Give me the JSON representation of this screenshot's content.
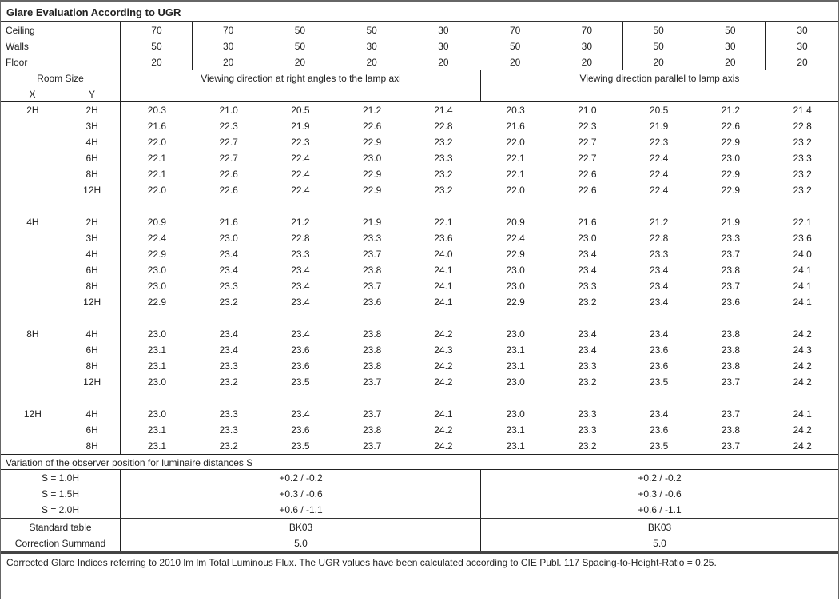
{
  "title": "Glare Evaluation According to UGR",
  "reflectances": [
    {
      "label": "Ceiling",
      "values": [
        "70",
        "70",
        "50",
        "50",
        "30",
        "70",
        "70",
        "50",
        "50",
        "30"
      ]
    },
    {
      "label": "Walls",
      "values": [
        "50",
        "30",
        "50",
        "30",
        "30",
        "50",
        "30",
        "50",
        "30",
        "30"
      ]
    },
    {
      "label": "Floor",
      "values": [
        "20",
        "20",
        "20",
        "20",
        "20",
        "20",
        "20",
        "20",
        "20",
        "20"
      ]
    }
  ],
  "header": {
    "room_size": "Room Size",
    "x": "X",
    "y": "Y",
    "dir_right": "Viewing direction at right angles to the lamp axi",
    "dir_parallel": "Viewing direction parallel to lamp axis"
  },
  "groups": [
    {
      "x": "2H",
      "rows": [
        {
          "y": "2H",
          "values": [
            "20.3",
            "21.0",
            "20.5",
            "21.2",
            "21.4",
            "20.3",
            "21.0",
            "20.5",
            "21.2",
            "21.4"
          ]
        },
        {
          "y": "3H",
          "values": [
            "21.6",
            "22.3",
            "21.9",
            "22.6",
            "22.8",
            "21.6",
            "22.3",
            "21.9",
            "22.6",
            "22.8"
          ]
        },
        {
          "y": "4H",
          "values": [
            "22.0",
            "22.7",
            "22.3",
            "22.9",
            "23.2",
            "22.0",
            "22.7",
            "22.3",
            "22.9",
            "23.2"
          ]
        },
        {
          "y": "6H",
          "values": [
            "22.1",
            "22.7",
            "22.4",
            "23.0",
            "23.3",
            "22.1",
            "22.7",
            "22.4",
            "23.0",
            "23.3"
          ]
        },
        {
          "y": "8H",
          "values": [
            "22.1",
            "22.6",
            "22.4",
            "22.9",
            "23.2",
            "22.1",
            "22.6",
            "22.4",
            "22.9",
            "23.2"
          ]
        },
        {
          "y": "12H",
          "values": [
            "22.0",
            "22.6",
            "22.4",
            "22.9",
            "23.2",
            "22.0",
            "22.6",
            "22.4",
            "22.9",
            "23.2"
          ]
        }
      ]
    },
    {
      "x": "4H",
      "rows": [
        {
          "y": "2H",
          "values": [
            "20.9",
            "21.6",
            "21.2",
            "21.9",
            "22.1",
            "20.9",
            "21.6",
            "21.2",
            "21.9",
            "22.1"
          ]
        },
        {
          "y": "3H",
          "values": [
            "22.4",
            "23.0",
            "22.8",
            "23.3",
            "23.6",
            "22.4",
            "23.0",
            "22.8",
            "23.3",
            "23.6"
          ]
        },
        {
          "y": "4H",
          "values": [
            "22.9",
            "23.4",
            "23.3",
            "23.7",
            "24.0",
            "22.9",
            "23.4",
            "23.3",
            "23.7",
            "24.0"
          ]
        },
        {
          "y": "6H",
          "values": [
            "23.0",
            "23.4",
            "23.4",
            "23.8",
            "24.1",
            "23.0",
            "23.4",
            "23.4",
            "23.8",
            "24.1"
          ]
        },
        {
          "y": "8H",
          "values": [
            "23.0",
            "23.3",
            "23.4",
            "23.7",
            "24.1",
            "23.0",
            "23.3",
            "23.4",
            "23.7",
            "24.1"
          ]
        },
        {
          "y": "12H",
          "values": [
            "22.9",
            "23.2",
            "23.4",
            "23.6",
            "24.1",
            "22.9",
            "23.2",
            "23.4",
            "23.6",
            "24.1"
          ]
        }
      ]
    },
    {
      "x": "8H",
      "rows": [
        {
          "y": "4H",
          "values": [
            "23.0",
            "23.4",
            "23.4",
            "23.8",
            "24.2",
            "23.0",
            "23.4",
            "23.4",
            "23.8",
            "24.2"
          ]
        },
        {
          "y": "6H",
          "values": [
            "23.1",
            "23.4",
            "23.6",
            "23.8",
            "24.3",
            "23.1",
            "23.4",
            "23.6",
            "23.8",
            "24.3"
          ]
        },
        {
          "y": "8H",
          "values": [
            "23.1",
            "23.3",
            "23.6",
            "23.8",
            "24.2",
            "23.1",
            "23.3",
            "23.6",
            "23.8",
            "24.2"
          ]
        },
        {
          "y": "12H",
          "values": [
            "23.0",
            "23.2",
            "23.5",
            "23.7",
            "24.2",
            "23.0",
            "23.2",
            "23.5",
            "23.7",
            "24.2"
          ]
        }
      ]
    },
    {
      "x": "12H",
      "rows": [
        {
          "y": "4H",
          "values": [
            "23.0",
            "23.3",
            "23.4",
            "23.7",
            "24.1",
            "23.0",
            "23.3",
            "23.4",
            "23.7",
            "24.1"
          ]
        },
        {
          "y": "6H",
          "values": [
            "23.1",
            "23.3",
            "23.6",
            "23.8",
            "24.2",
            "23.1",
            "23.3",
            "23.6",
            "23.8",
            "24.2"
          ]
        },
        {
          "y": "8H",
          "values": [
            "23.1",
            "23.2",
            "23.5",
            "23.7",
            "24.2",
            "23.1",
            "23.2",
            "23.5",
            "23.7",
            "24.2"
          ]
        }
      ]
    }
  ],
  "variation": {
    "label": "Variation of the observer position for luminaire distances S",
    "rows": [
      {
        "s": "S = 1.0H",
        "right": "+0.2 / -0.2",
        "parallel": "+0.2 / -0.2"
      },
      {
        "s": "S = 1.5H",
        "right": "+0.3 / -0.6",
        "parallel": "+0.3 / -0.6"
      },
      {
        "s": "S = 2.0H",
        "right": "+0.6 / -1.1",
        "parallel": "+0.6 / -1.1"
      }
    ]
  },
  "standard_table": {
    "label": "Standard table",
    "right": "BK03",
    "parallel": "BK03"
  },
  "correction": {
    "label": "Correction Summand",
    "right": "5.0",
    "parallel": "5.0"
  },
  "footer": "Corrected Glare Indices referring to 2010 lm lm Total Luminous Flux. The UGR values have been calculated according to CIE Publ. 117    Spacing-to-Height-Ratio = 0.25."
}
